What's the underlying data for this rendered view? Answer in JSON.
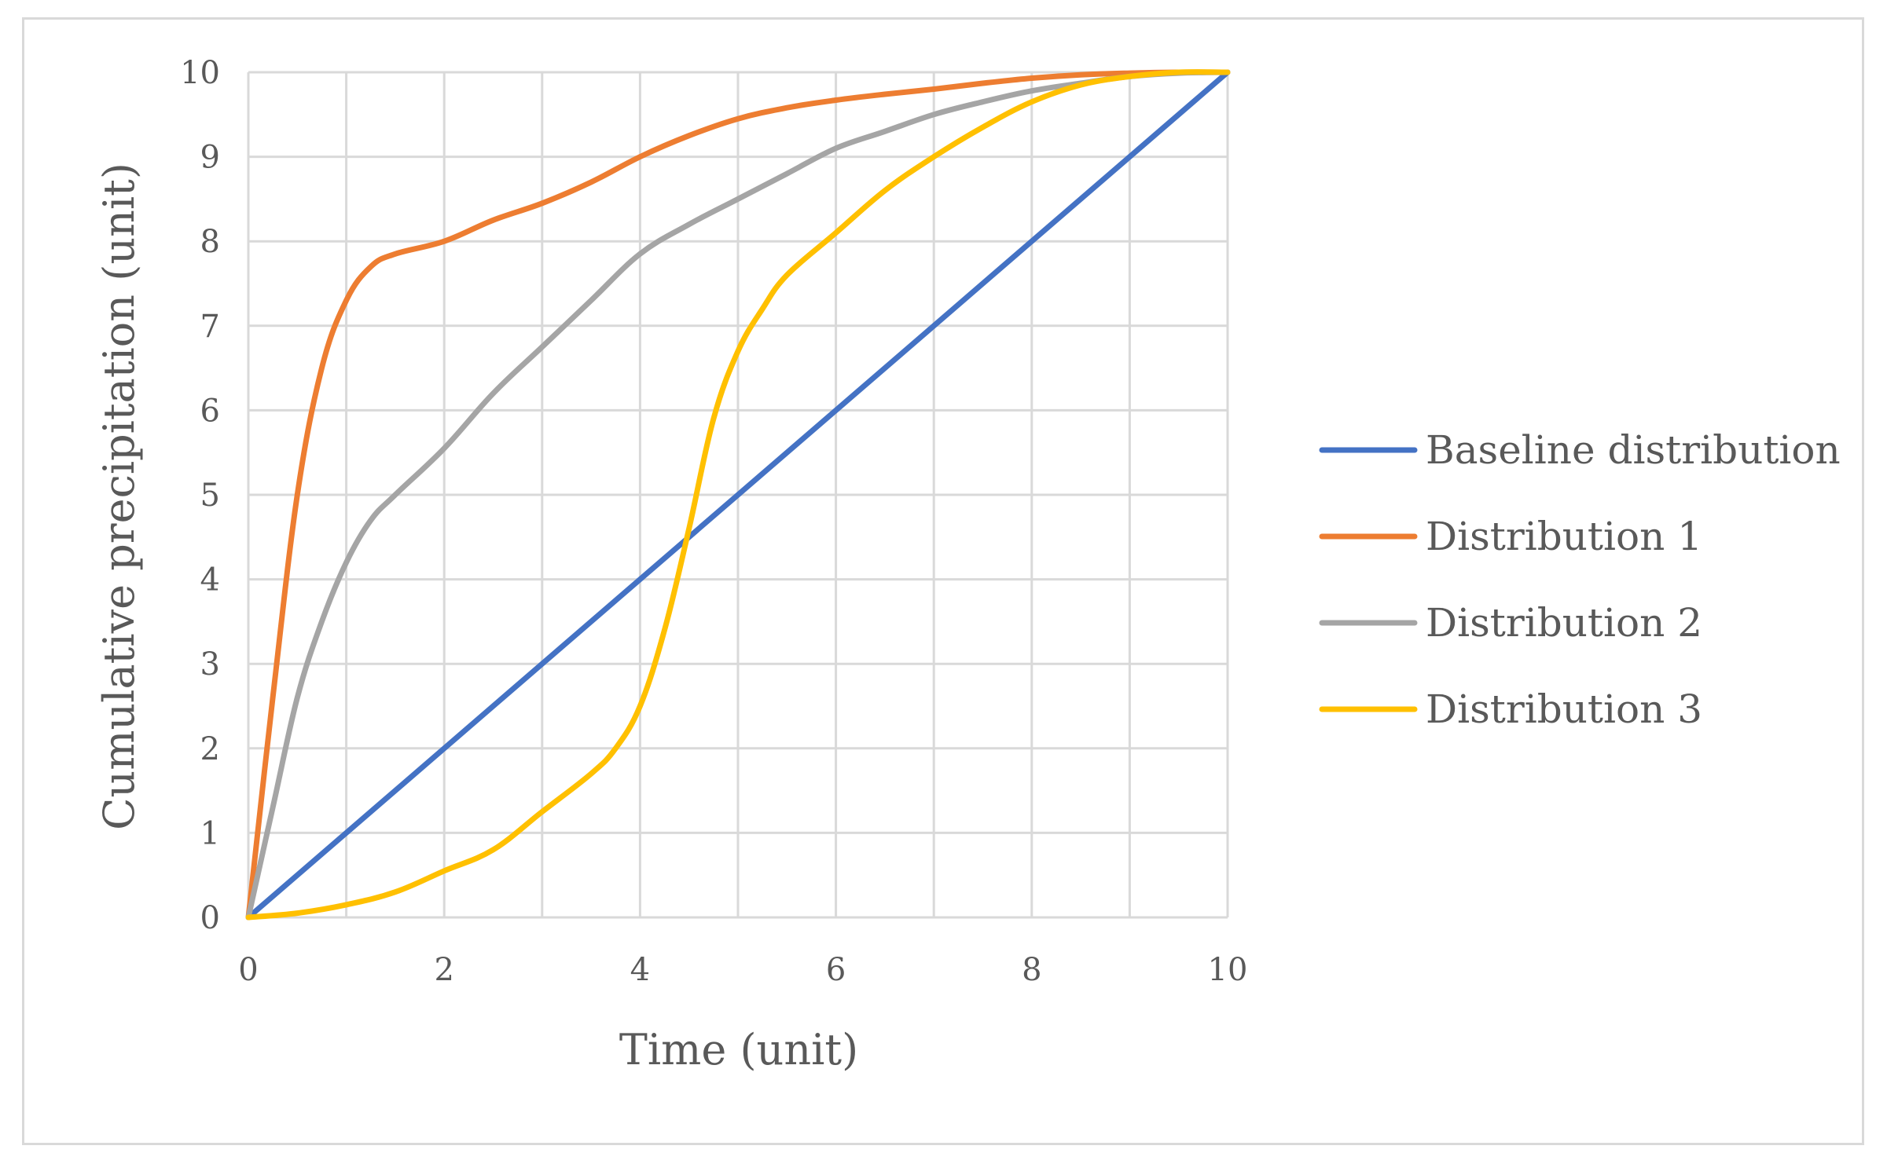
{
  "chart_data": {
    "type": "line",
    "title": "",
    "xlabel": "Time (unit)",
    "ylabel": "Cumulative precipitation (unit)",
    "xlim": [
      0,
      10
    ],
    "ylim": [
      0,
      10
    ],
    "x_ticks": [
      "0",
      "2",
      "4",
      "6",
      "8",
      "10"
    ],
    "y_ticks": [
      "0",
      "1",
      "2",
      "3",
      "4",
      "5",
      "6",
      "7",
      "8",
      "9",
      "10"
    ],
    "grid": true,
    "legend_position": "right",
    "series": [
      {
        "name": "Baseline distribution",
        "color": "#4472c4",
        "x": [
          0,
          10
        ],
        "y": [
          0,
          10
        ]
      },
      {
        "name": "Distribution 1",
        "color": "#ed7d31",
        "x": [
          0,
          0.25,
          0.5,
          0.75,
          1,
          1.25,
          1.5,
          2,
          2.5,
          3,
          3.5,
          4,
          4.5,
          5,
          5.5,
          6,
          6.5,
          7,
          7.5,
          8,
          8.5,
          9,
          9.5,
          10
        ],
        "y": [
          0,
          2.6,
          5.0,
          6.5,
          7.3,
          7.7,
          7.85,
          8.0,
          8.25,
          8.45,
          8.7,
          9.0,
          9.25,
          9.45,
          9.58,
          9.67,
          9.74,
          9.8,
          9.87,
          9.93,
          9.97,
          9.99,
          10.0,
          10.0
        ]
      },
      {
        "name": "Distribution 2",
        "color": "#a5a5a5",
        "x": [
          0,
          0.25,
          0.5,
          0.75,
          1,
          1.25,
          1.5,
          2,
          2.5,
          3,
          3.5,
          4,
          4.5,
          5,
          5.5,
          6,
          6.5,
          7,
          7.5,
          8,
          8.5,
          9,
          9.5,
          10
        ],
        "y": [
          0,
          1.3,
          2.6,
          3.5,
          4.2,
          4.7,
          5.0,
          5.55,
          6.2,
          6.75,
          7.3,
          7.85,
          8.2,
          8.5,
          8.8,
          9.1,
          9.3,
          9.5,
          9.65,
          9.78,
          9.87,
          9.95,
          9.99,
          10.0
        ]
      },
      {
        "name": "Distribution 3",
        "color": "#ffc000",
        "x": [
          0,
          0.5,
          1,
          1.5,
          2,
          2.5,
          3,
          3.5,
          3.75,
          4,
          4.25,
          4.5,
          4.75,
          5,
          5.25,
          5.5,
          6,
          6.5,
          7,
          7.5,
          8,
          8.5,
          9,
          9.5,
          10
        ],
        "y": [
          0,
          0.05,
          0.15,
          0.3,
          0.55,
          0.8,
          1.25,
          1.7,
          2.0,
          2.5,
          3.4,
          4.6,
          5.9,
          6.7,
          7.2,
          7.6,
          8.1,
          8.6,
          9.0,
          9.35,
          9.65,
          9.85,
          9.95,
          10.0,
          10.0
        ]
      }
    ]
  }
}
